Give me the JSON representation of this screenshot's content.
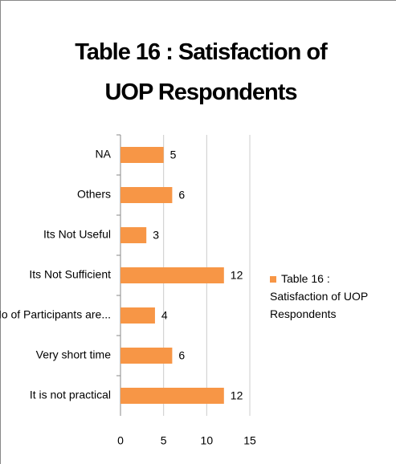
{
  "chart_data": {
    "type": "bar",
    "orientation": "horizontal",
    "title": "Table 16 : Satisfaction of UOP Respondents",
    "categories": [
      "NA",
      "Others",
      "Its Not Useful",
      "Its Not Sufficient",
      "No of Participants are...",
      "Very short time",
      "It is not practical"
    ],
    "series": [
      {
        "name": "Table 16 : Satisfaction of UOP Respondents",
        "color": "#f79646",
        "values": [
          5,
          6,
          3,
          12,
          4,
          6,
          12
        ]
      }
    ],
    "xlim": [
      0,
      15
    ],
    "xticks": [
      0,
      5,
      10,
      15
    ],
    "grid": true,
    "legend": "right"
  }
}
